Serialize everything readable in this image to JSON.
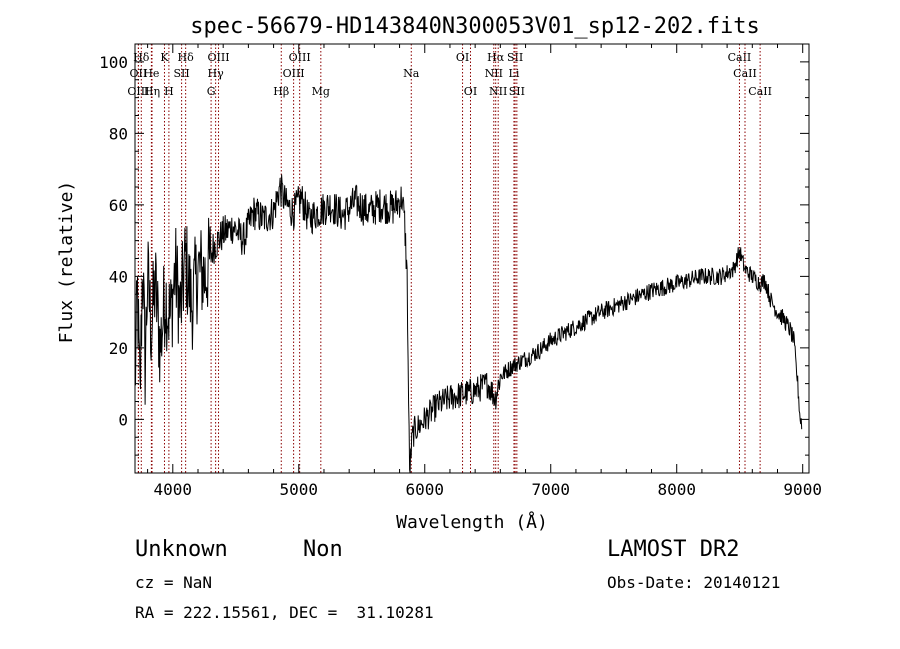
{
  "chart_data": {
    "type": "line",
    "title": "spec-56679-HD143840N300053V01_sp12-202.fits",
    "xlabel": "Wavelength (Å)",
    "ylabel": "Flux (relative)",
    "xlim": [
      3700,
      9050
    ],
    "ylim": [
      -15,
      105
    ],
    "xticks": [
      4000,
      5000,
      6000,
      7000,
      8000,
      9000
    ],
    "yticks": [
      0,
      20,
      40,
      60,
      80,
      100
    ],
    "grid": false,
    "line_color": "#000000",
    "marker_color": "#8b0000",
    "series": [
      {
        "name": "flux",
        "x": [
          3700,
          3720,
          3740,
          3760,
          3780,
          3800,
          3830,
          3860,
          3900,
          3940,
          3980,
          4020,
          4060,
          4100,
          4150,
          4200,
          4260,
          4320,
          4400,
          4480,
          4560,
          4640,
          4720,
          4800,
          4850,
          4900,
          4960,
          5020,
          5080,
          5150,
          5250,
          5350,
          5450,
          5550,
          5650,
          5750,
          5820,
          5840,
          5860,
          5870,
          5880,
          5890,
          5900,
          5920,
          5950,
          6000,
          6050,
          6100,
          6200,
          6300,
          6400,
          6500,
          6560,
          6600,
          6700,
          6800,
          6900,
          7000,
          7200,
          7400,
          7600,
          7800,
          8000,
          8200,
          8350,
          8450,
          8500,
          8540,
          8600,
          8660,
          8700,
          8750,
          8800,
          8850,
          8900,
          8930,
          8960,
          8980,
          8995
        ],
        "y": [
          10,
          35,
          5,
          45,
          15,
          40,
          25,
          38,
          20,
          35,
          28,
          42,
          30,
          45,
          32,
          42,
          40,
          48,
          52,
          54,
          50,
          58,
          56,
          58,
          65,
          60,
          58,
          62,
          56,
          58,
          60,
          57,
          61,
          58,
          60,
          59,
          62,
          55,
          40,
          10,
          -15,
          -10,
          -5,
          -3,
          -2,
          0,
          2,
          4,
          6,
          7,
          8,
          10,
          6,
          12,
          15,
          17,
          19,
          22,
          26,
          30,
          33,
          36,
          38,
          40,
          40,
          42,
          47,
          42,
          40,
          38,
          39,
          33,
          30,
          28,
          25,
          22,
          10,
          0,
          -1
        ]
      }
    ],
    "markers": [
      {
        "label": "Hδ",
        "x": 3750,
        "row": 1
      },
      {
        "label": "OII",
        "x": 3727,
        "row": 2
      },
      {
        "label": "OIII",
        "x": 3727,
        "row": 3
      },
      {
        "label": "He",
        "x": 3830,
        "row": 2
      },
      {
        "label": "Hη",
        "x": 3835,
        "row": 3
      },
      {
        "label": "K",
        "x": 3934,
        "row": 1
      },
      {
        "label": "H",
        "x": 3969,
        "row": 3
      },
      {
        "label": "SII",
        "x": 4070,
        "row": 2
      },
      {
        "label": "Hδ",
        "x": 4102,
        "row": 1
      },
      {
        "label": "OIII",
        "x": 4363,
        "row": 1
      },
      {
        "label": "Hγ",
        "x": 4340,
        "row": 2
      },
      {
        "label": "G",
        "x": 4304,
        "row": 3
      },
      {
        "label": "Hβ",
        "x": 4861,
        "row": 3
      },
      {
        "label": "OIII",
        "x": 5007,
        "row": 1
      },
      {
        "label": "OIII",
        "x": 4959,
        "row": 2
      },
      {
        "label": "Mg",
        "x": 5175,
        "row": 3
      },
      {
        "label": "Na",
        "x": 5893,
        "row": 2
      },
      {
        "label": "OI",
        "x": 6300,
        "row": 1
      },
      {
        "label": "OI",
        "x": 6363,
        "row": 3
      },
      {
        "label": "Hα",
        "x": 6563,
        "row": 1
      },
      {
        "label": "NII",
        "x": 6548,
        "row": 2
      },
      {
        "label": "NII",
        "x": 6583,
        "row": 3
      },
      {
        "label": "SII",
        "x": 6717,
        "row": 1
      },
      {
        "label": "Li",
        "x": 6708,
        "row": 2
      },
      {
        "label": "SII",
        "x": 6731,
        "row": 3
      },
      {
        "label": "CaII",
        "x": 8498,
        "row": 1
      },
      {
        "label": "CaII",
        "x": 8542,
        "row": 2
      },
      {
        "label": "CaII",
        "x": 8662,
        "row": 3
      }
    ]
  },
  "info": {
    "class": "Unknown",
    "subclass": "Non",
    "survey": "LAMOST DR2",
    "cz": "cz = NaN",
    "obs_date": "Obs-Date: 20140121",
    "coords": "RA = 222.15561, DEC =  31.10281"
  }
}
